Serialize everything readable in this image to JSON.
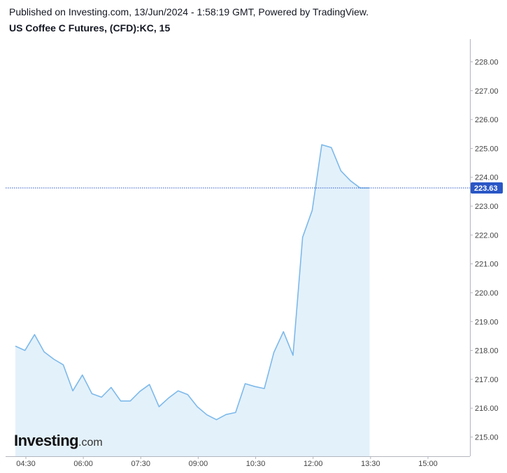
{
  "header": {
    "published": "Published on Investing.com, 13/Jun/2024 - 1:58:19 GMT, Powered by TradingView.",
    "title": "US Coffee C Futures, (CFD):KC, 15"
  },
  "logo": {
    "brand": "Investing",
    "suffix": ".com"
  },
  "colors": {
    "line": "#7db9ea",
    "fill": "#e3f1fb",
    "last_price_line": "#2a56c6",
    "last_price_badge": "#2a56c6"
  },
  "chart_data": {
    "type": "area",
    "x_ticks": [
      "04:30",
      "06:00",
      "07:30",
      "09:00",
      "10:30",
      "12:00",
      "13:30",
      "15:00"
    ],
    "y_ticks": [
      "215.00",
      "216.00",
      "217.00",
      "218.00",
      "219.00",
      "220.00",
      "221.00",
      "222.00",
      "223.00",
      "224.00",
      "225.00",
      "226.00",
      "227.00",
      "228.00"
    ],
    "ylim": [
      214.5,
      228.5
    ],
    "last_price": 223.63,
    "last_price_label": "223.63",
    "values": [
      218.15,
      218.0,
      218.55,
      217.95,
      217.7,
      217.5,
      216.6,
      217.15,
      216.5,
      216.38,
      216.72,
      216.25,
      216.25,
      216.58,
      216.82,
      216.05,
      216.35,
      216.6,
      216.47,
      216.05,
      215.77,
      215.6,
      215.78,
      215.85,
      216.85,
      216.75,
      216.68,
      217.93,
      218.65,
      217.83,
      221.92,
      222.85,
      225.13,
      225.03,
      224.22,
      223.88,
      223.63,
      223.63
    ],
    "x_start_minutes": 270,
    "x_step_minutes": 15
  }
}
